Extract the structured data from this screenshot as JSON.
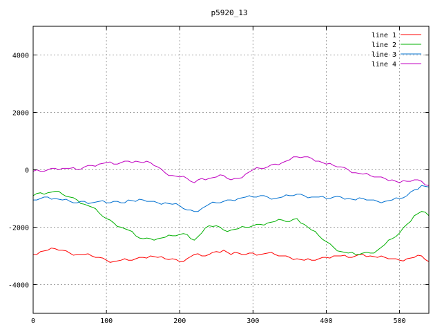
{
  "chart_data": {
    "type": "line",
    "title": "p5920_13",
    "xlabel": "",
    "ylabel": "",
    "xlim": [
      0,
      540
    ],
    "ylim": [
      -5000,
      5000
    ],
    "xticks": [
      0,
      100,
      200,
      300,
      400,
      500
    ],
    "yticks": [
      -4000,
      -2000,
      0,
      2000,
      4000
    ],
    "grid": true,
    "legend_position": "top-right",
    "series": [
      {
        "name": "line 1",
        "color": "#ff0000",
        "x": [
          0,
          10,
          20,
          30,
          40,
          50,
          60,
          70,
          80,
          90,
          100,
          110,
          120,
          130,
          140,
          150,
          160,
          170,
          180,
          190,
          200,
          210,
          220,
          230,
          240,
          250,
          260,
          270,
          280,
          290,
          300,
          310,
          320,
          330,
          340,
          350,
          360,
          370,
          380,
          390,
          400,
          410,
          420,
          430,
          440,
          450,
          460,
          470,
          480,
          490,
          500,
          510,
          520,
          530,
          540
        ],
        "y": [
          -2950,
          -2850,
          -2800,
          -2750,
          -2800,
          -2900,
          -2950,
          -2950,
          -3000,
          -3050,
          -3150,
          -3200,
          -3150,
          -3150,
          -3100,
          -3050,
          -3000,
          -3050,
          -3100,
          -3100,
          -3200,
          -3100,
          -2950,
          -3000,
          -2950,
          -2850,
          -2800,
          -2950,
          -2900,
          -2950,
          -2900,
          -2950,
          -2900,
          -2950,
          -3000,
          -3050,
          -3100,
          -3150,
          -3150,
          -3100,
          -3050,
          -3000,
          -3000,
          -3050,
          -3000,
          -2950,
          -3000,
          -3050,
          -3050,
          -3100,
          -3150,
          -3100,
          -3050,
          -3000,
          -3200
        ]
      },
      {
        "name": "line 2",
        "color": "#00b000",
        "x": [
          0,
          10,
          20,
          30,
          40,
          50,
          60,
          70,
          80,
          90,
          100,
          110,
          120,
          130,
          140,
          150,
          160,
          170,
          180,
          190,
          200,
          210,
          220,
          230,
          240,
          250,
          260,
          270,
          280,
          290,
          300,
          310,
          320,
          330,
          340,
          350,
          360,
          370,
          380,
          390,
          400,
          410,
          420,
          430,
          440,
          450,
          460,
          470,
          480,
          490,
          500,
          510,
          520,
          530,
          540
        ],
        "y": [
          -900,
          -800,
          -800,
          -750,
          -850,
          -950,
          -1050,
          -1200,
          -1300,
          -1500,
          -1700,
          -1850,
          -2000,
          -2100,
          -2300,
          -2400,
          -2400,
          -2400,
          -2350,
          -2300,
          -2250,
          -2250,
          -2450,
          -2200,
          -1950,
          -1950,
          -2100,
          -2100,
          -2050,
          -2000,
          -1950,
          -1900,
          -1850,
          -1800,
          -1750,
          -1800,
          -1700,
          -1900,
          -2100,
          -2300,
          -2500,
          -2700,
          -2850,
          -2900,
          -2950,
          -2900,
          -2900,
          -2800,
          -2600,
          -2400,
          -2200,
          -1900,
          -1600,
          -1450,
          -1600
        ]
      },
      {
        "name": "line 3",
        "color": "#0070d0",
        "x": [
          0,
          10,
          20,
          30,
          40,
          50,
          60,
          70,
          80,
          90,
          100,
          110,
          120,
          130,
          140,
          150,
          160,
          170,
          180,
          190,
          200,
          210,
          220,
          230,
          240,
          250,
          260,
          270,
          280,
          290,
          300,
          310,
          320,
          330,
          340,
          350,
          360,
          370,
          380,
          390,
          400,
          410,
          420,
          430,
          440,
          450,
          460,
          470,
          480,
          490,
          500,
          510,
          520,
          530,
          540
        ],
        "y": [
          -1050,
          -1000,
          -950,
          -1000,
          -1050,
          -1100,
          -1150,
          -1100,
          -1150,
          -1100,
          -1150,
          -1100,
          -1150,
          -1050,
          -1100,
          -1050,
          -1100,
          -1150,
          -1150,
          -1200,
          -1250,
          -1400,
          -1450,
          -1350,
          -1200,
          -1150,
          -1100,
          -1050,
          -1000,
          -950,
          -950,
          -900,
          -950,
          -1000,
          -950,
          -900,
          -850,
          -900,
          -950,
          -950,
          -1000,
          -950,
          -950,
          -1000,
          -1050,
          -1000,
          -1050,
          -1100,
          -1100,
          -1050,
          -1000,
          -900,
          -700,
          -550,
          -600
        ]
      },
      {
        "name": "line 4",
        "color": "#c000c0",
        "x": [
          0,
          10,
          20,
          30,
          40,
          50,
          60,
          70,
          80,
          90,
          100,
          110,
          120,
          130,
          140,
          150,
          160,
          170,
          180,
          190,
          200,
          210,
          220,
          230,
          240,
          250,
          260,
          270,
          280,
          290,
          300,
          310,
          320,
          330,
          340,
          350,
          360,
          370,
          380,
          390,
          400,
          410,
          420,
          430,
          440,
          450,
          460,
          470,
          480,
          490,
          500,
          510,
          520,
          530,
          540
        ],
        "y": [
          -50,
          -50,
          0,
          50,
          50,
          50,
          0,
          100,
          150,
          200,
          250,
          200,
          250,
          300,
          300,
          250,
          250,
          100,
          -100,
          -200,
          -250,
          -300,
          -450,
          -300,
          -300,
          -250,
          -200,
          -350,
          -300,
          -150,
          0,
          50,
          100,
          200,
          250,
          350,
          450,
          450,
          400,
          300,
          200,
          150,
          100,
          0,
          -100,
          -150,
          -200,
          -250,
          -300,
          -350,
          -450,
          -400,
          -350,
          -400,
          -550
        ]
      }
    ]
  }
}
